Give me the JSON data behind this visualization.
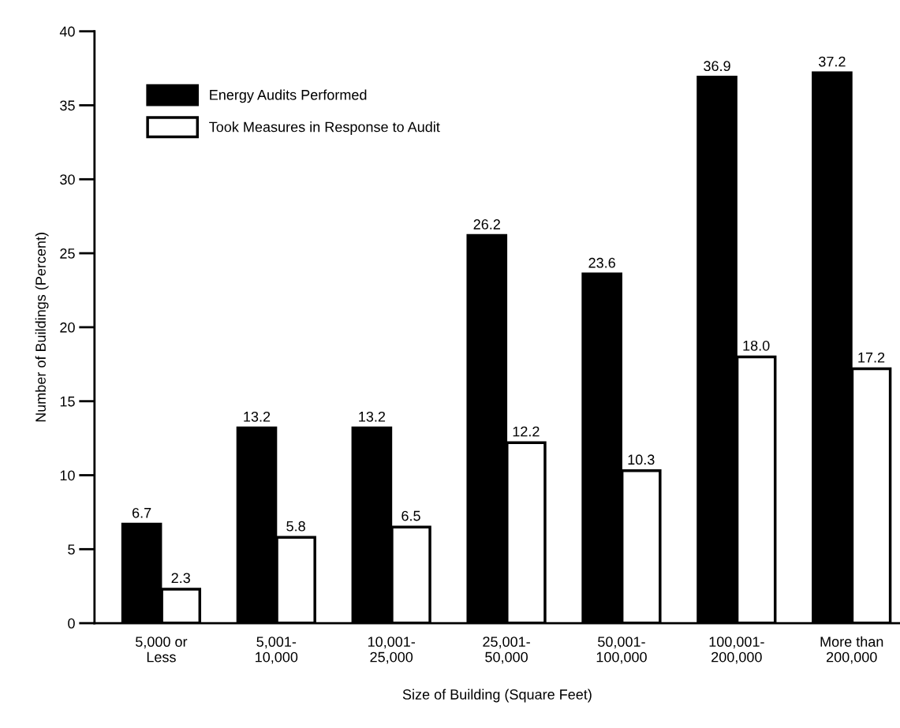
{
  "chart_data": {
    "type": "bar",
    "xlabel": "Size of Building (Square Feet)",
    "ylabel": "Number of Buildings (Percent)",
    "categories": [
      "5,000 or\nLess",
      "5,001-\n10,000",
      "10,001-\n25,000",
      "25,001-\n50,000",
      "50,001-\n100,000",
      "100,001-\n200,000",
      "More than\n200,000"
    ],
    "series": [
      {
        "name": "Energy Audits Performed",
        "color": "#000000",
        "values": [
          6.7,
          13.2,
          13.2,
          26.2,
          23.6,
          36.9,
          37.2
        ],
        "value_labels": [
          "6.7",
          "13.2",
          "13.2",
          "26.2",
          "23.6",
          "36.9",
          "37.2"
        ]
      },
      {
        "name": "Took Measures in Response to Audit",
        "color": "#ffffff",
        "values": [
          2.3,
          5.8,
          6.5,
          12.2,
          10.3,
          18.0,
          17.2
        ],
        "value_labels": [
          "2.3",
          "5.8",
          "6.5",
          "12.2",
          "10.3",
          "18.0",
          "17.2"
        ]
      }
    ],
    "ylim": [
      0,
      40
    ],
    "yticks": [
      0,
      5,
      10,
      15,
      20,
      25,
      30,
      35,
      40
    ],
    "legend": "top left",
    "grid": false
  }
}
